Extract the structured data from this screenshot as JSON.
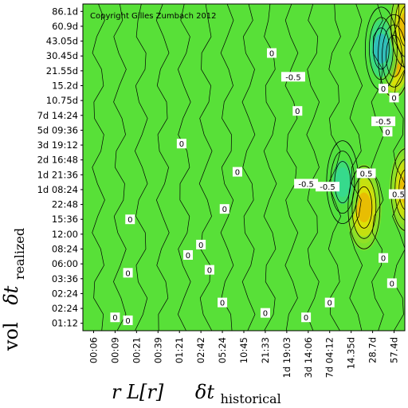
{
  "chart_data": {
    "type": "heatmap",
    "subtype": "contour",
    "copyright": "Copyright Gilles Zumbach 2012",
    "xlabel": {
      "left": "r L[r]",
      "main": "δt",
      "sub": "historical"
    },
    "ylabel": {
      "left": "vol",
      "main": "δt",
      "sub": "realized"
    },
    "x_ticks": [
      "00:06",
      "00:09",
      "00:21",
      "00:39",
      "01:21",
      "02:42",
      "05:24",
      "10:45",
      "21:33",
      "1d 19:03",
      "3d 14:06",
      "7d 04:12",
      "14.35d",
      "28.7d",
      "57.4d"
    ],
    "y_ticks": [
      "86.1d",
      "60.9d",
      "43.05d",
      "30.45d",
      "21.55d",
      "15.2d",
      "10.75d",
      "7d 14:24",
      "5d 09:36",
      "3d 19:12",
      "2d 16:48",
      "1d 21:36",
      "1d 08:24",
      "22:48",
      "15:36",
      "12:00",
      "08:24",
      "06:00",
      "03:36",
      "02:24",
      "02:24",
      "01:12"
    ],
    "colorscale": [
      "#1030e0",
      "#2aa8e0",
      "#30d8a0",
      "#50e040",
      "#a0e020",
      "#f0e000",
      "#f0a000",
      "#e03000"
    ],
    "contour_levels": [
      -0.5,
      0,
      0.5
    ],
    "features": [
      {
        "x": 14.0,
        "y": 3.0,
        "value": 0.75
      },
      {
        "x": 13.4,
        "y": 2.5,
        "value": -0.6
      },
      {
        "x": 12.6,
        "y": 13.2,
        "value": 0.7
      },
      {
        "x": 14.6,
        "y": 12.0,
        "value": 0.6
      },
      {
        "x": 11.6,
        "y": 11.5,
        "value": -0.45
      },
      {
        "x": 14.6,
        "y": 1.0,
        "value": 0.7
      }
    ],
    "contour_labels": [
      {
        "text": "0",
        "x": 1.0,
        "y": 20.6
      },
      {
        "text": "0",
        "x": 1.6,
        "y": 17.6
      },
      {
        "text": "0",
        "x": 4.4,
        "y": 16.4
      },
      {
        "text": "0",
        "x": 5.4,
        "y": 17.4
      },
      {
        "text": "0",
        "x": 6.1,
        "y": 13.3
      },
      {
        "text": "0",
        "x": 5.0,
        "y": 15.7
      },
      {
        "text": "0",
        "x": 4.1,
        "y": 8.9
      },
      {
        "text": "0",
        "x": 1.7,
        "y": 14.0
      },
      {
        "text": "0",
        "x": 6.7,
        "y": 10.8
      },
      {
        "text": "0",
        "x": 8.3,
        "y": 2.8
      },
      {
        "text": "0",
        "x": 9.5,
        "y": 6.7
      },
      {
        "text": "-0.5",
        "x": 9.9,
        "y": 11.6
      },
      {
        "text": "-0.5",
        "x": 10.9,
        "y": 11.8
      },
      {
        "text": "-0.5",
        "x": 9.3,
        "y": 4.4
      },
      {
        "text": "0.5",
        "x": 12.7,
        "y": 10.9
      },
      {
        "text": "0.5",
        "x": 14.2,
        "y": 12.3
      },
      {
        "text": "0",
        "x": 13.5,
        "y": 5.2
      },
      {
        "text": "-0.5",
        "x": 13.5,
        "y": 7.4
      },
      {
        "text": "0",
        "x": 13.7,
        "y": 8.1
      },
      {
        "text": "0",
        "x": 14.0,
        "y": 5.8
      },
      {
        "text": "0",
        "x": 13.5,
        "y": 16.6
      },
      {
        "text": "0",
        "x": 13.9,
        "y": 18.3
      },
      {
        "text": "0",
        "x": 1.6,
        "y": 20.8
      },
      {
        "text": "0",
        "x": 6.0,
        "y": 19.6
      },
      {
        "text": "0",
        "x": 8.0,
        "y": 20.3
      },
      {
        "text": "0",
        "x": 9.9,
        "y": 20.6
      },
      {
        "text": "0",
        "x": 11.0,
        "y": 19.6
      },
      {
        "text": "0",
        "x": 7.1,
        "y": 22.0
      }
    ]
  }
}
